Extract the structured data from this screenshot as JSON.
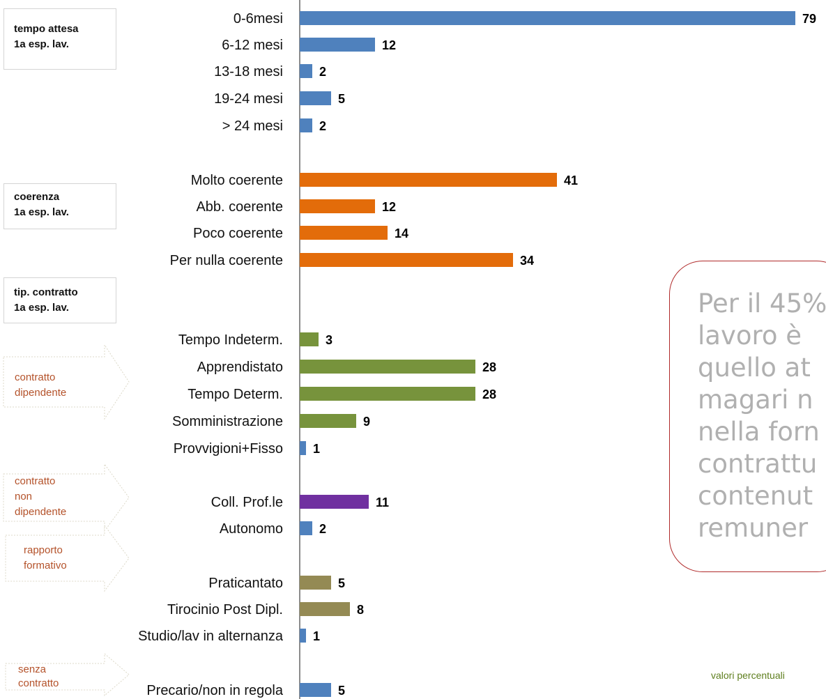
{
  "chart_data": {
    "type": "bar",
    "orientation": "horizontal",
    "note": "valori percentuali",
    "sections": [
      {
        "title": [
          "tempo attesa",
          "1a esp. lav."
        ]
      },
      {
        "title": [
          "coerenza",
          "1a esp. lav."
        ]
      },
      {
        "title": [
          "tip. contratto",
          "1a esp. lav."
        ]
      }
    ],
    "groups": [
      {
        "label": [
          "contratto",
          "dipendente"
        ]
      },
      {
        "label": [
          "contratto",
          "non",
          "dipendente"
        ]
      },
      {
        "label": [
          "rapporto",
          "formativo"
        ]
      },
      {
        "label": [
          "senza",
          "contratto"
        ]
      }
    ],
    "bars": [
      {
        "category": "0-6mesi",
        "value": 79,
        "color": "#4f81bd"
      },
      {
        "category": "6-12 mesi",
        "value": 12,
        "color": "#4f81bd"
      },
      {
        "category": "13-18 mesi",
        "value": 2,
        "color": "#4f81bd"
      },
      {
        "category": "19-24 mesi",
        "value": 5,
        "color": "#4f81bd"
      },
      {
        "category": "> 24 mesi",
        "value": 2,
        "color": "#4f81bd"
      },
      {
        "category": "Molto coerente",
        "value": 41,
        "color": "#e36c0a"
      },
      {
        "category": "Abb. coerente",
        "value": 12,
        "color": "#e36c0a"
      },
      {
        "category": "Poco coerente",
        "value": 14,
        "color": "#e36c0a"
      },
      {
        "category": "Per nulla coerente",
        "value": 34,
        "color": "#e36c0a"
      },
      {
        "category": "Tempo Indeterm.",
        "value": 3,
        "color": "#77933c"
      },
      {
        "category": "Apprendistato",
        "value": 28,
        "color": "#77933c"
      },
      {
        "category": "Tempo Determ.",
        "value": 28,
        "color": "#77933c"
      },
      {
        "category": "Somministrazione",
        "value": 9,
        "color": "#77933c"
      },
      {
        "category": "Provvigioni+Fisso",
        "value": 1,
        "color": "#4f81bd"
      },
      {
        "category": "Coll. Prof.le",
        "value": 11,
        "color": "#7030a0"
      },
      {
        "category": "Autonomo",
        "value": 2,
        "color": "#4f81bd"
      },
      {
        "category": "Praticantato",
        "value": 5,
        "color": "#948a54"
      },
      {
        "category": "Tirocinio Post Dipl.",
        "value": 8,
        "color": "#948a54"
      },
      {
        "category": "Studio/lav in alternanza",
        "value": 1,
        "color": "#4f81bd"
      },
      {
        "category": "Precario/non in regola",
        "value": 5,
        "color": "#4f81bd"
      }
    ]
  },
  "callout": {
    "lines": [
      "Per il 45%",
      "lavoro è",
      "quello at",
      "magari n",
      "nella forn",
      "contrattu",
      "contenut",
      "remuner"
    ],
    "color": "#b0b0b0"
  },
  "colors": {
    "group_text": "#b4522a",
    "note_text": "#5f7f1f",
    "axis": "#8c8c8c"
  }
}
